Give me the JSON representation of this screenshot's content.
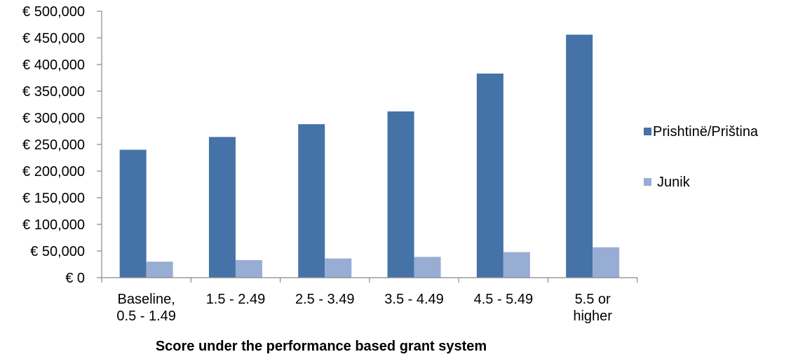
{
  "chart_data": {
    "type": "bar",
    "title": "",
    "xlabel": "Score under the performance based grant system",
    "ylabel": "",
    "ylim": [
      0,
      500000
    ],
    "ytick_step": 50000,
    "ytick_labels": [
      "€ 0",
      "€ 50,000",
      "€ 100,000",
      "€ 150,000",
      "€ 200,000",
      "€ 250,000",
      "€ 300,000",
      "€ 350,000",
      "€ 400,000",
      "€ 450,000",
      "€ 500,000"
    ],
    "categories": [
      [
        "Baseline,",
        "0.5 - 1.49"
      ],
      [
        "1.5 - 2.49"
      ],
      [
        "2.5 - 3.49"
      ],
      [
        "3.5 - 4.49"
      ],
      [
        "4.5 - 5.49"
      ],
      [
        "5.5 or",
        "higher"
      ]
    ],
    "series": [
      {
        "name": "Prishtinë/Priština",
        "color": "#4572A7",
        "values": [
          240000,
          264000,
          288000,
          312000,
          383000,
          456000
        ]
      },
      {
        "name": "Junik",
        "color": "#98ADD4",
        "values": [
          30000,
          33000,
          36000,
          39000,
          48000,
          57000
        ]
      }
    ],
    "grid": false,
    "legend_position": "right"
  }
}
